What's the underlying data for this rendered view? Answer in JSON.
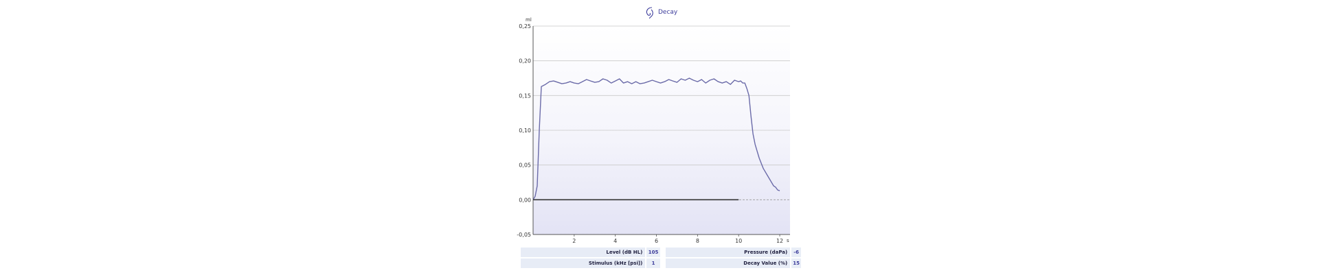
{
  "chart_data": {
    "type": "line",
    "title": "Decay",
    "xlabel": "s",
    "ylabel": "ml",
    "xlim": [
      0,
      12.5
    ],
    "ylim": [
      -0.05,
      0.25
    ],
    "xticks": [
      2,
      4,
      6,
      8,
      10,
      12
    ],
    "xtick_labels": [
      "2",
      "4",
      "6",
      "8",
      "10",
      "12"
    ],
    "yticks": [
      0.25,
      0.2,
      0.15,
      0.1,
      0.05,
      0.0,
      -0.05
    ],
    "ytick_labels": [
      "0,25",
      "0,20",
      "0,15",
      "0,10",
      "0,05",
      "0,00",
      "-0,05"
    ],
    "grid": true,
    "series": [
      {
        "color": "#6a6aa8",
        "x": [
          0.0,
          0.1,
          0.2,
          0.3,
          0.4,
          0.6,
          0.8,
          1.0,
          1.2,
          1.4,
          1.6,
          1.8,
          2.0,
          2.2,
          2.4,
          2.6,
          2.8,
          3.0,
          3.2,
          3.4,
          3.6,
          3.8,
          4.0,
          4.2,
          4.4,
          4.6,
          4.8,
          5.0,
          5.2,
          5.4,
          5.6,
          5.8,
          6.0,
          6.2,
          6.4,
          6.6,
          6.8,
          7.0,
          7.2,
          7.4,
          7.6,
          7.8,
          8.0,
          8.2,
          8.4,
          8.6,
          8.8,
          9.0,
          9.2,
          9.4,
          9.6,
          9.8,
          10.0,
          10.1,
          10.2,
          10.3,
          10.4,
          10.5,
          10.6,
          10.7,
          10.8,
          10.9,
          11.0,
          11.2,
          11.4,
          11.6,
          11.7,
          11.8,
          11.9,
          12.0
        ],
        "y": [
          0.0,
          0.005,
          0.02,
          0.1,
          0.163,
          0.166,
          0.17,
          0.171,
          0.169,
          0.167,
          0.168,
          0.17,
          0.168,
          0.167,
          0.17,
          0.173,
          0.171,
          0.169,
          0.17,
          0.174,
          0.172,
          0.168,
          0.171,
          0.174,
          0.168,
          0.17,
          0.167,
          0.17,
          0.167,
          0.168,
          0.17,
          0.172,
          0.17,
          0.168,
          0.17,
          0.173,
          0.171,
          0.169,
          0.174,
          0.172,
          0.175,
          0.172,
          0.17,
          0.173,
          0.168,
          0.172,
          0.174,
          0.17,
          0.168,
          0.17,
          0.166,
          0.172,
          0.17,
          0.171,
          0.168,
          0.168,
          0.16,
          0.15,
          0.12,
          0.095,
          0.08,
          0.07,
          0.06,
          0.045,
          0.035,
          0.025,
          0.02,
          0.018,
          0.014,
          0.013
        ]
      },
      {
        "color": "#333333",
        "x": [
          0.0,
          10.0
        ],
        "y": [
          0.0,
          0.0
        ]
      }
    ]
  },
  "table": {
    "rows": [
      {
        "label1": "Level (dB HL)",
        "value1": "105",
        "label2": "Pressure (daPa)",
        "value2": "-6"
      },
      {
        "label1": "Stimulus (kHz [psi])",
        "value1": "1",
        "label2": "Decay Value (%)",
        "value2": "15"
      }
    ]
  }
}
